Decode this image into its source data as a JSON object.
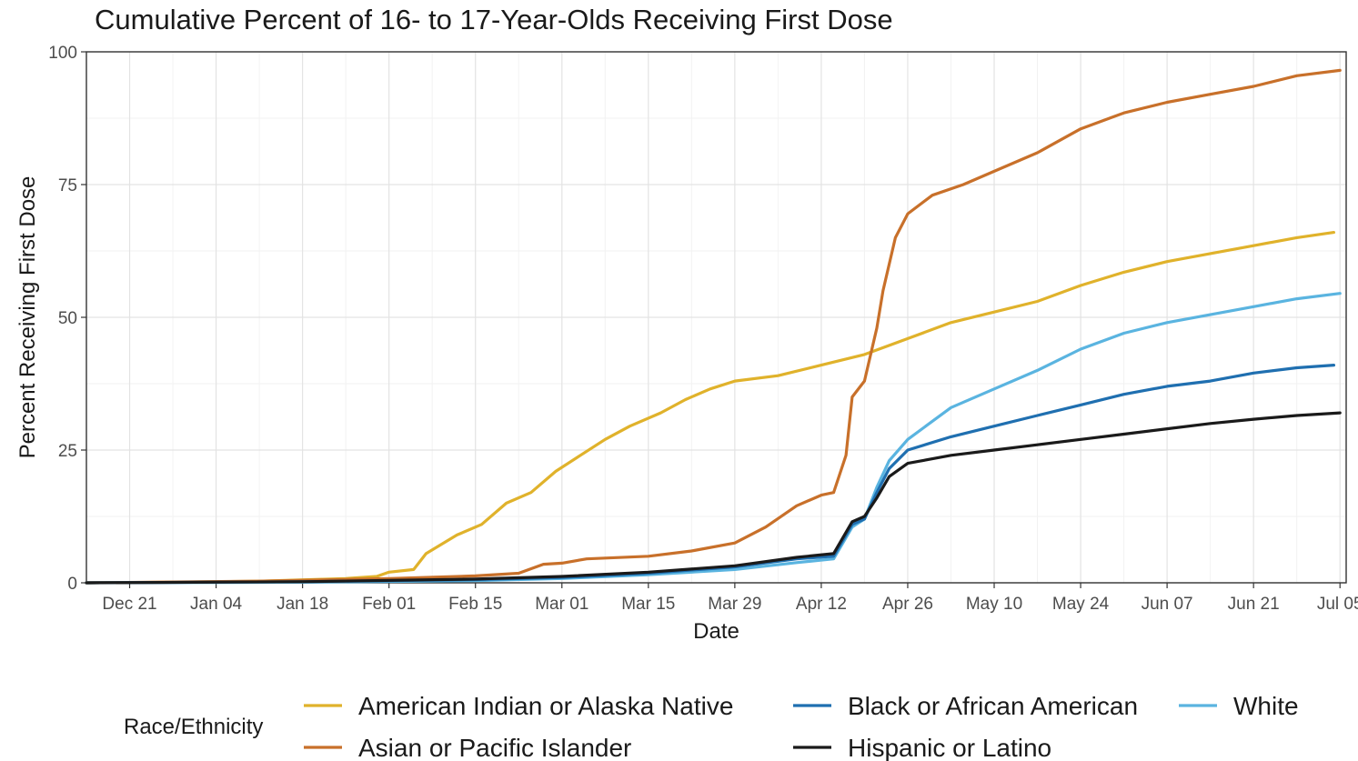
{
  "chart_data": {
    "type": "line",
    "title": "Cumulative Percent of 16- to 17-Year-Olds Receiving First Dose",
    "xlabel": "Date",
    "ylabel": "Percent Receiving First Dose",
    "x_ticks": [
      "Dec 21",
      "Jan 04",
      "Jan 18",
      "Feb 01",
      "Feb 15",
      "Mar 01",
      "Mar 15",
      "Mar 29",
      "Apr 12",
      "Apr 26",
      "May 10",
      "May 24",
      "Jun 07",
      "Jun 21",
      "Jul 05"
    ],
    "xlim": [
      "2020-12-14",
      "2021-07-06"
    ],
    "ylim": [
      0,
      100
    ],
    "y_ticks": [
      "0",
      "25",
      "50",
      "75",
      "100"
    ],
    "grid": true,
    "legend": {
      "title": "Race/Ethnicity",
      "position": "bottom"
    },
    "series": [
      {
        "name": "American Indian or Alaska Native",
        "color": "#e0b22b",
        "points": [
          [
            "2020-12-14",
            0
          ],
          [
            "2020-12-28",
            0.1
          ],
          [
            "2021-01-11",
            0.3
          ],
          [
            "2021-01-25",
            0.8
          ],
          [
            "2021-01-30",
            1.2
          ],
          [
            "2021-02-01",
            2.0
          ],
          [
            "2021-02-05",
            2.5
          ],
          [
            "2021-02-07",
            5.5
          ],
          [
            "2021-02-12",
            9.0
          ],
          [
            "2021-02-16",
            11.0
          ],
          [
            "2021-02-20",
            15.0
          ],
          [
            "2021-02-24",
            17.0
          ],
          [
            "2021-02-28",
            21.0
          ],
          [
            "2021-03-04",
            24.0
          ],
          [
            "2021-03-08",
            27.0
          ],
          [
            "2021-03-12",
            29.5
          ],
          [
            "2021-03-17",
            32.0
          ],
          [
            "2021-03-21",
            34.5
          ],
          [
            "2021-03-25",
            36.5
          ],
          [
            "2021-03-29",
            38.0
          ],
          [
            "2021-04-05",
            39.0
          ],
          [
            "2021-04-12",
            41.0
          ],
          [
            "2021-04-19",
            43.0
          ],
          [
            "2021-04-26",
            46.0
          ],
          [
            "2021-05-03",
            49.0
          ],
          [
            "2021-05-10",
            51.0
          ],
          [
            "2021-05-17",
            53.0
          ],
          [
            "2021-05-24",
            56.0
          ],
          [
            "2021-05-31",
            58.5
          ],
          [
            "2021-06-07",
            60.5
          ],
          [
            "2021-06-14",
            62.0
          ],
          [
            "2021-06-21",
            63.5
          ],
          [
            "2021-06-28",
            65.0
          ],
          [
            "2021-07-04",
            66.0
          ]
        ]
      },
      {
        "name": "Asian or Pacific Islander",
        "color": "#c8702a",
        "points": [
          [
            "2020-12-14",
            0
          ],
          [
            "2021-01-11",
            0.3
          ],
          [
            "2021-02-01",
            0.8
          ],
          [
            "2021-02-15",
            1.3
          ],
          [
            "2021-02-22",
            1.8
          ],
          [
            "2021-02-26",
            3.5
          ],
          [
            "2021-03-01",
            3.7
          ],
          [
            "2021-03-05",
            4.5
          ],
          [
            "2021-03-15",
            5.0
          ],
          [
            "2021-03-22",
            6.0
          ],
          [
            "2021-03-29",
            7.5
          ],
          [
            "2021-04-03",
            10.5
          ],
          [
            "2021-04-08",
            14.5
          ],
          [
            "2021-04-12",
            16.5
          ],
          [
            "2021-04-14",
            17.0
          ],
          [
            "2021-04-16",
            24.0
          ],
          [
            "2021-04-17",
            35.0
          ],
          [
            "2021-04-19",
            38.0
          ],
          [
            "2021-04-21",
            48.0
          ],
          [
            "2021-04-22",
            55.0
          ],
          [
            "2021-04-24",
            65.0
          ],
          [
            "2021-04-26",
            69.5
          ],
          [
            "2021-04-30",
            73.0
          ],
          [
            "2021-05-05",
            75.0
          ],
          [
            "2021-05-10",
            77.5
          ],
          [
            "2021-05-17",
            81.0
          ],
          [
            "2021-05-24",
            85.5
          ],
          [
            "2021-05-31",
            88.5
          ],
          [
            "2021-06-07",
            90.5
          ],
          [
            "2021-06-14",
            92.0
          ],
          [
            "2021-06-21",
            93.5
          ],
          [
            "2021-06-28",
            95.5
          ],
          [
            "2021-07-05",
            96.5
          ]
        ]
      },
      {
        "name": "Black or African American",
        "color": "#1f6fb0",
        "points": [
          [
            "2020-12-14",
            0
          ],
          [
            "2021-01-18",
            0.2
          ],
          [
            "2021-02-15",
            0.6
          ],
          [
            "2021-03-01",
            1.0
          ],
          [
            "2021-03-15",
            1.8
          ],
          [
            "2021-03-29",
            3.0
          ],
          [
            "2021-04-08",
            4.5
          ],
          [
            "2021-04-14",
            5.0
          ],
          [
            "2021-04-17",
            11.0
          ],
          [
            "2021-04-19",
            12.0
          ],
          [
            "2021-04-21",
            17.0
          ],
          [
            "2021-04-23",
            21.5
          ],
          [
            "2021-04-26",
            25.0
          ],
          [
            "2021-05-03",
            27.5
          ],
          [
            "2021-05-10",
            29.5
          ],
          [
            "2021-05-17",
            31.5
          ],
          [
            "2021-05-24",
            33.5
          ],
          [
            "2021-05-31",
            35.5
          ],
          [
            "2021-06-07",
            37.0
          ],
          [
            "2021-06-14",
            38.0
          ],
          [
            "2021-06-21",
            39.5
          ],
          [
            "2021-06-28",
            40.5
          ],
          [
            "2021-07-04",
            41.0
          ]
        ]
      },
      {
        "name": "Hispanic or Latino",
        "color": "#1a1a1a",
        "points": [
          [
            "2020-12-14",
            0
          ],
          [
            "2021-01-18",
            0.2
          ],
          [
            "2021-02-15",
            0.7
          ],
          [
            "2021-03-01",
            1.2
          ],
          [
            "2021-03-15",
            2.0
          ],
          [
            "2021-03-29",
            3.2
          ],
          [
            "2021-04-08",
            4.8
          ],
          [
            "2021-04-14",
            5.5
          ],
          [
            "2021-04-17",
            11.5
          ],
          [
            "2021-04-19",
            12.5
          ],
          [
            "2021-04-21",
            16.0
          ],
          [
            "2021-04-23",
            20.0
          ],
          [
            "2021-04-26",
            22.5
          ],
          [
            "2021-05-03",
            24.0
          ],
          [
            "2021-05-10",
            25.0
          ],
          [
            "2021-05-17",
            26.0
          ],
          [
            "2021-05-24",
            27.0
          ],
          [
            "2021-05-31",
            28.0
          ],
          [
            "2021-06-07",
            29.0
          ],
          [
            "2021-06-14",
            30.0
          ],
          [
            "2021-06-21",
            30.8
          ],
          [
            "2021-06-28",
            31.5
          ],
          [
            "2021-07-05",
            32.0
          ]
        ]
      },
      {
        "name": "White",
        "color": "#5ab4e0",
        "points": [
          [
            "2020-12-14",
            0
          ],
          [
            "2021-01-18",
            0.1
          ],
          [
            "2021-02-15",
            0.4
          ],
          [
            "2021-03-01",
            0.8
          ],
          [
            "2021-03-15",
            1.5
          ],
          [
            "2021-03-29",
            2.5
          ],
          [
            "2021-04-08",
            3.8
          ],
          [
            "2021-04-14",
            4.5
          ],
          [
            "2021-04-17",
            10.5
          ],
          [
            "2021-04-19",
            12.0
          ],
          [
            "2021-04-21",
            18.0
          ],
          [
            "2021-04-23",
            23.0
          ],
          [
            "2021-04-26",
            27.0
          ],
          [
            "2021-05-03",
            33.0
          ],
          [
            "2021-05-10",
            36.5
          ],
          [
            "2021-05-17",
            40.0
          ],
          [
            "2021-05-24",
            44.0
          ],
          [
            "2021-05-31",
            47.0
          ],
          [
            "2021-06-07",
            49.0
          ],
          [
            "2021-06-14",
            50.5
          ],
          [
            "2021-06-21",
            52.0
          ],
          [
            "2021-06-28",
            53.5
          ],
          [
            "2021-07-05",
            54.5
          ]
        ]
      }
    ]
  }
}
